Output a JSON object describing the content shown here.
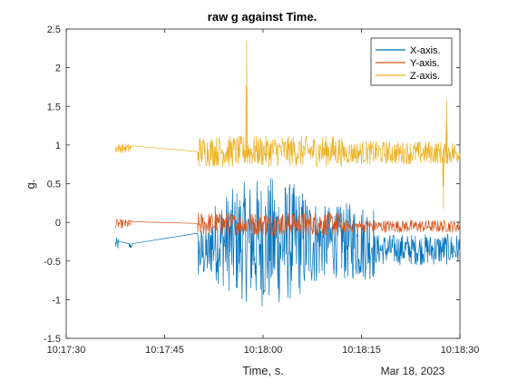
{
  "chart_data": {
    "type": "line",
    "title": "raw g against Time.",
    "xlabel": "Time, s.",
    "ylabel": "g.",
    "date_label": "Mar 18, 2023",
    "x_ticks": [
      {
        "label": "10:17:30",
        "t": 0
      },
      {
        "label": "10:17:45",
        "t": 15
      },
      {
        "label": "10:18:00",
        "t": 30
      },
      {
        "label": "10:18:15",
        "t": 45
      },
      {
        "label": "10:18:30",
        "t": 60
      }
    ],
    "xlim_labels": [
      "10:17:30",
      "10:18:30"
    ],
    "y_ticks": [
      -1.5,
      -1,
      -0.5,
      0,
      0.5,
      1,
      1.5,
      2,
      2.5
    ],
    "ylim": [
      -1.5,
      2.5
    ],
    "grid": false,
    "legend_position": "top-right",
    "series": [
      {
        "name": "X-axis.",
        "color": "#0072BD",
        "segments": [
          {
            "t_start": "10:17:37.5",
            "t_end": "10:17:38.0",
            "center": -0.28,
            "amplitude": 0.08
          },
          {
            "t_start": "10:17:39.5",
            "t_end": "10:17:40.0",
            "center": -0.3,
            "amplitude": 0.04
          },
          {
            "t_start": "10:17:50.0",
            "t_end": "10:17:52.0",
            "center": -0.4,
            "amplitude": 0.35
          },
          {
            "t_start": "10:17:52.0",
            "t_end": "10:18:12.0",
            "center": -0.25,
            "amplitude": 0.85
          },
          {
            "t_start": "10:18:12.0",
            "t_end": "10:18:17.0",
            "center": -0.25,
            "amplitude": 0.5
          },
          {
            "t_start": "10:18:17.0",
            "t_end": "10:18:30.0",
            "center": -0.35,
            "amplitude": 0.2
          }
        ],
        "approx_range": [
          -1.2,
          0.75
        ]
      },
      {
        "name": "Y-axis.",
        "color": "#D95319",
        "segments": [
          {
            "t_start": "10:17:37.5",
            "t_end": "10:17:40.0",
            "center": -0.02,
            "amplitude": 0.06
          },
          {
            "t_start": "10:17:50.0",
            "t_end": "10:18:12.0",
            "center": -0.02,
            "amplitude": 0.15
          },
          {
            "t_start": "10:18:12.0",
            "t_end": "10:18:30.0",
            "center": -0.05,
            "amplitude": 0.08
          }
        ],
        "approx_range": [
          -0.25,
          0.3
        ]
      },
      {
        "name": "Z-axis.",
        "color": "#EDB120",
        "segments": [
          {
            "t_start": "10:17:37.5",
            "t_end": "10:17:40.0",
            "center": 0.96,
            "amplitude": 0.06
          },
          {
            "t_start": "10:17:50.0",
            "t_end": "10:18:12.0",
            "center": 0.92,
            "amplitude": 0.2
          },
          {
            "t_start": "10:18:12.0",
            "t_end": "10:18:30.0",
            "center": 0.9,
            "amplitude": 0.15
          }
        ],
        "peaks": [
          {
            "t": "10:17:57.5",
            "value": 2.35
          },
          {
            "t": "10:18:28.0",
            "value": 1.58
          },
          {
            "t": "10:18:27.5",
            "value": 0.18
          }
        ],
        "approx_range": [
          0.15,
          2.35
        ]
      }
    ]
  }
}
